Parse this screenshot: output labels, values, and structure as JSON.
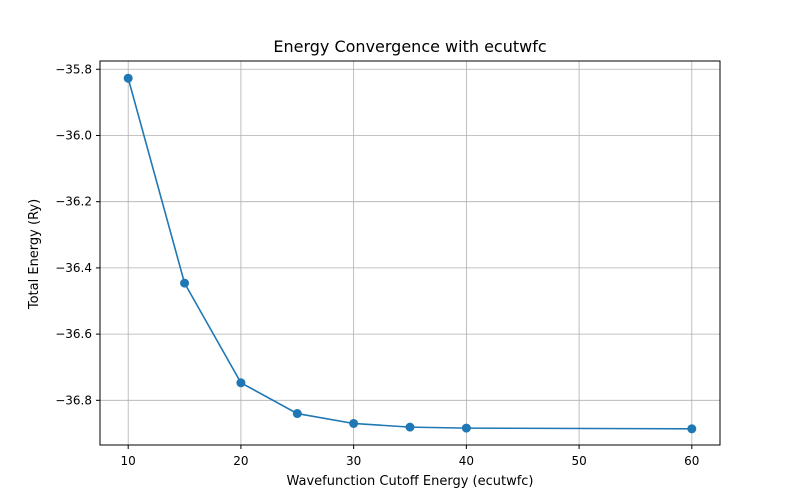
{
  "chart_data": {
    "type": "line",
    "title": "Energy Convergence with ecutwfc",
    "xlabel": "Wavefunction Cutoff Energy (ecutwfc)",
    "ylabel": "Total Energy (Ry)",
    "xlim": [
      7.5,
      62.5
    ],
    "ylim": [
      -36.935,
      -35.775
    ],
    "x_ticks": [
      10,
      20,
      30,
      40,
      50,
      60
    ],
    "x_tick_labels": [
      "10",
      "20",
      "30",
      "40",
      "50",
      "60"
    ],
    "y_ticks": [
      -35.8,
      -36.0,
      -36.2,
      -36.4,
      -36.6,
      -36.8
    ],
    "y_tick_labels": [
      "−35.8",
      "−36.0",
      "−36.2",
      "−36.4",
      "−36.6",
      "−36.8"
    ],
    "grid": true,
    "marker": "circle",
    "line_color": "#1f77b4",
    "series": [
      {
        "x": [
          10,
          15,
          20,
          25,
          30,
          35,
          40,
          60
        ],
        "y": [
          -35.827,
          -36.446,
          -36.747,
          -36.84,
          -36.87,
          -36.881,
          -36.884,
          -36.886
        ]
      }
    ]
  }
}
